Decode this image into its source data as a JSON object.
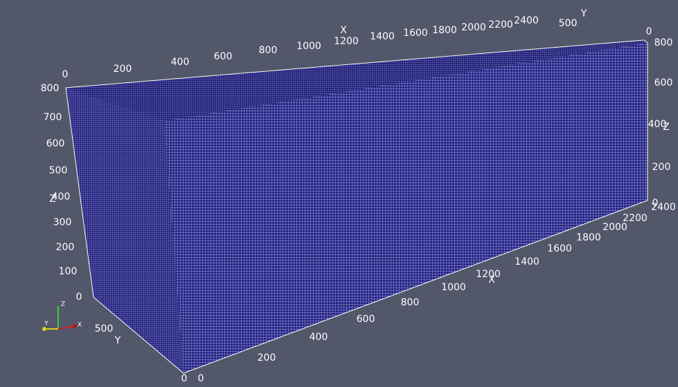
{
  "viewport": {
    "top_x_axis": {
      "title": "X",
      "ticks": [
        0,
        200,
        400,
        600,
        800,
        1000,
        1200,
        1400,
        1600,
        1800,
        2000,
        2200,
        2400
      ]
    },
    "top_y_axis": {
      "title": "Y",
      "ticks": [
        500,
        0
      ]
    },
    "left_z_axis": {
      "title": "Z",
      "ticks": [
        800,
        700,
        600,
        500,
        400,
        300,
        200,
        100,
        0
      ]
    },
    "left_y_axis": {
      "title": "Y",
      "ticks": [
        500,
        0
      ]
    },
    "right_z_axis": {
      "title": "Z",
      "ticks": [
        800,
        600,
        400,
        200,
        0
      ]
    },
    "bottom_x_axis": {
      "title": "X",
      "ticks": [
        0,
        200,
        400,
        600,
        800,
        1000,
        1200,
        1400,
        1600,
        1800,
        2000,
        2200,
        2400
      ]
    },
    "orientation_widget": {
      "x": "X",
      "y": "Y",
      "z": "Z"
    }
  }
}
